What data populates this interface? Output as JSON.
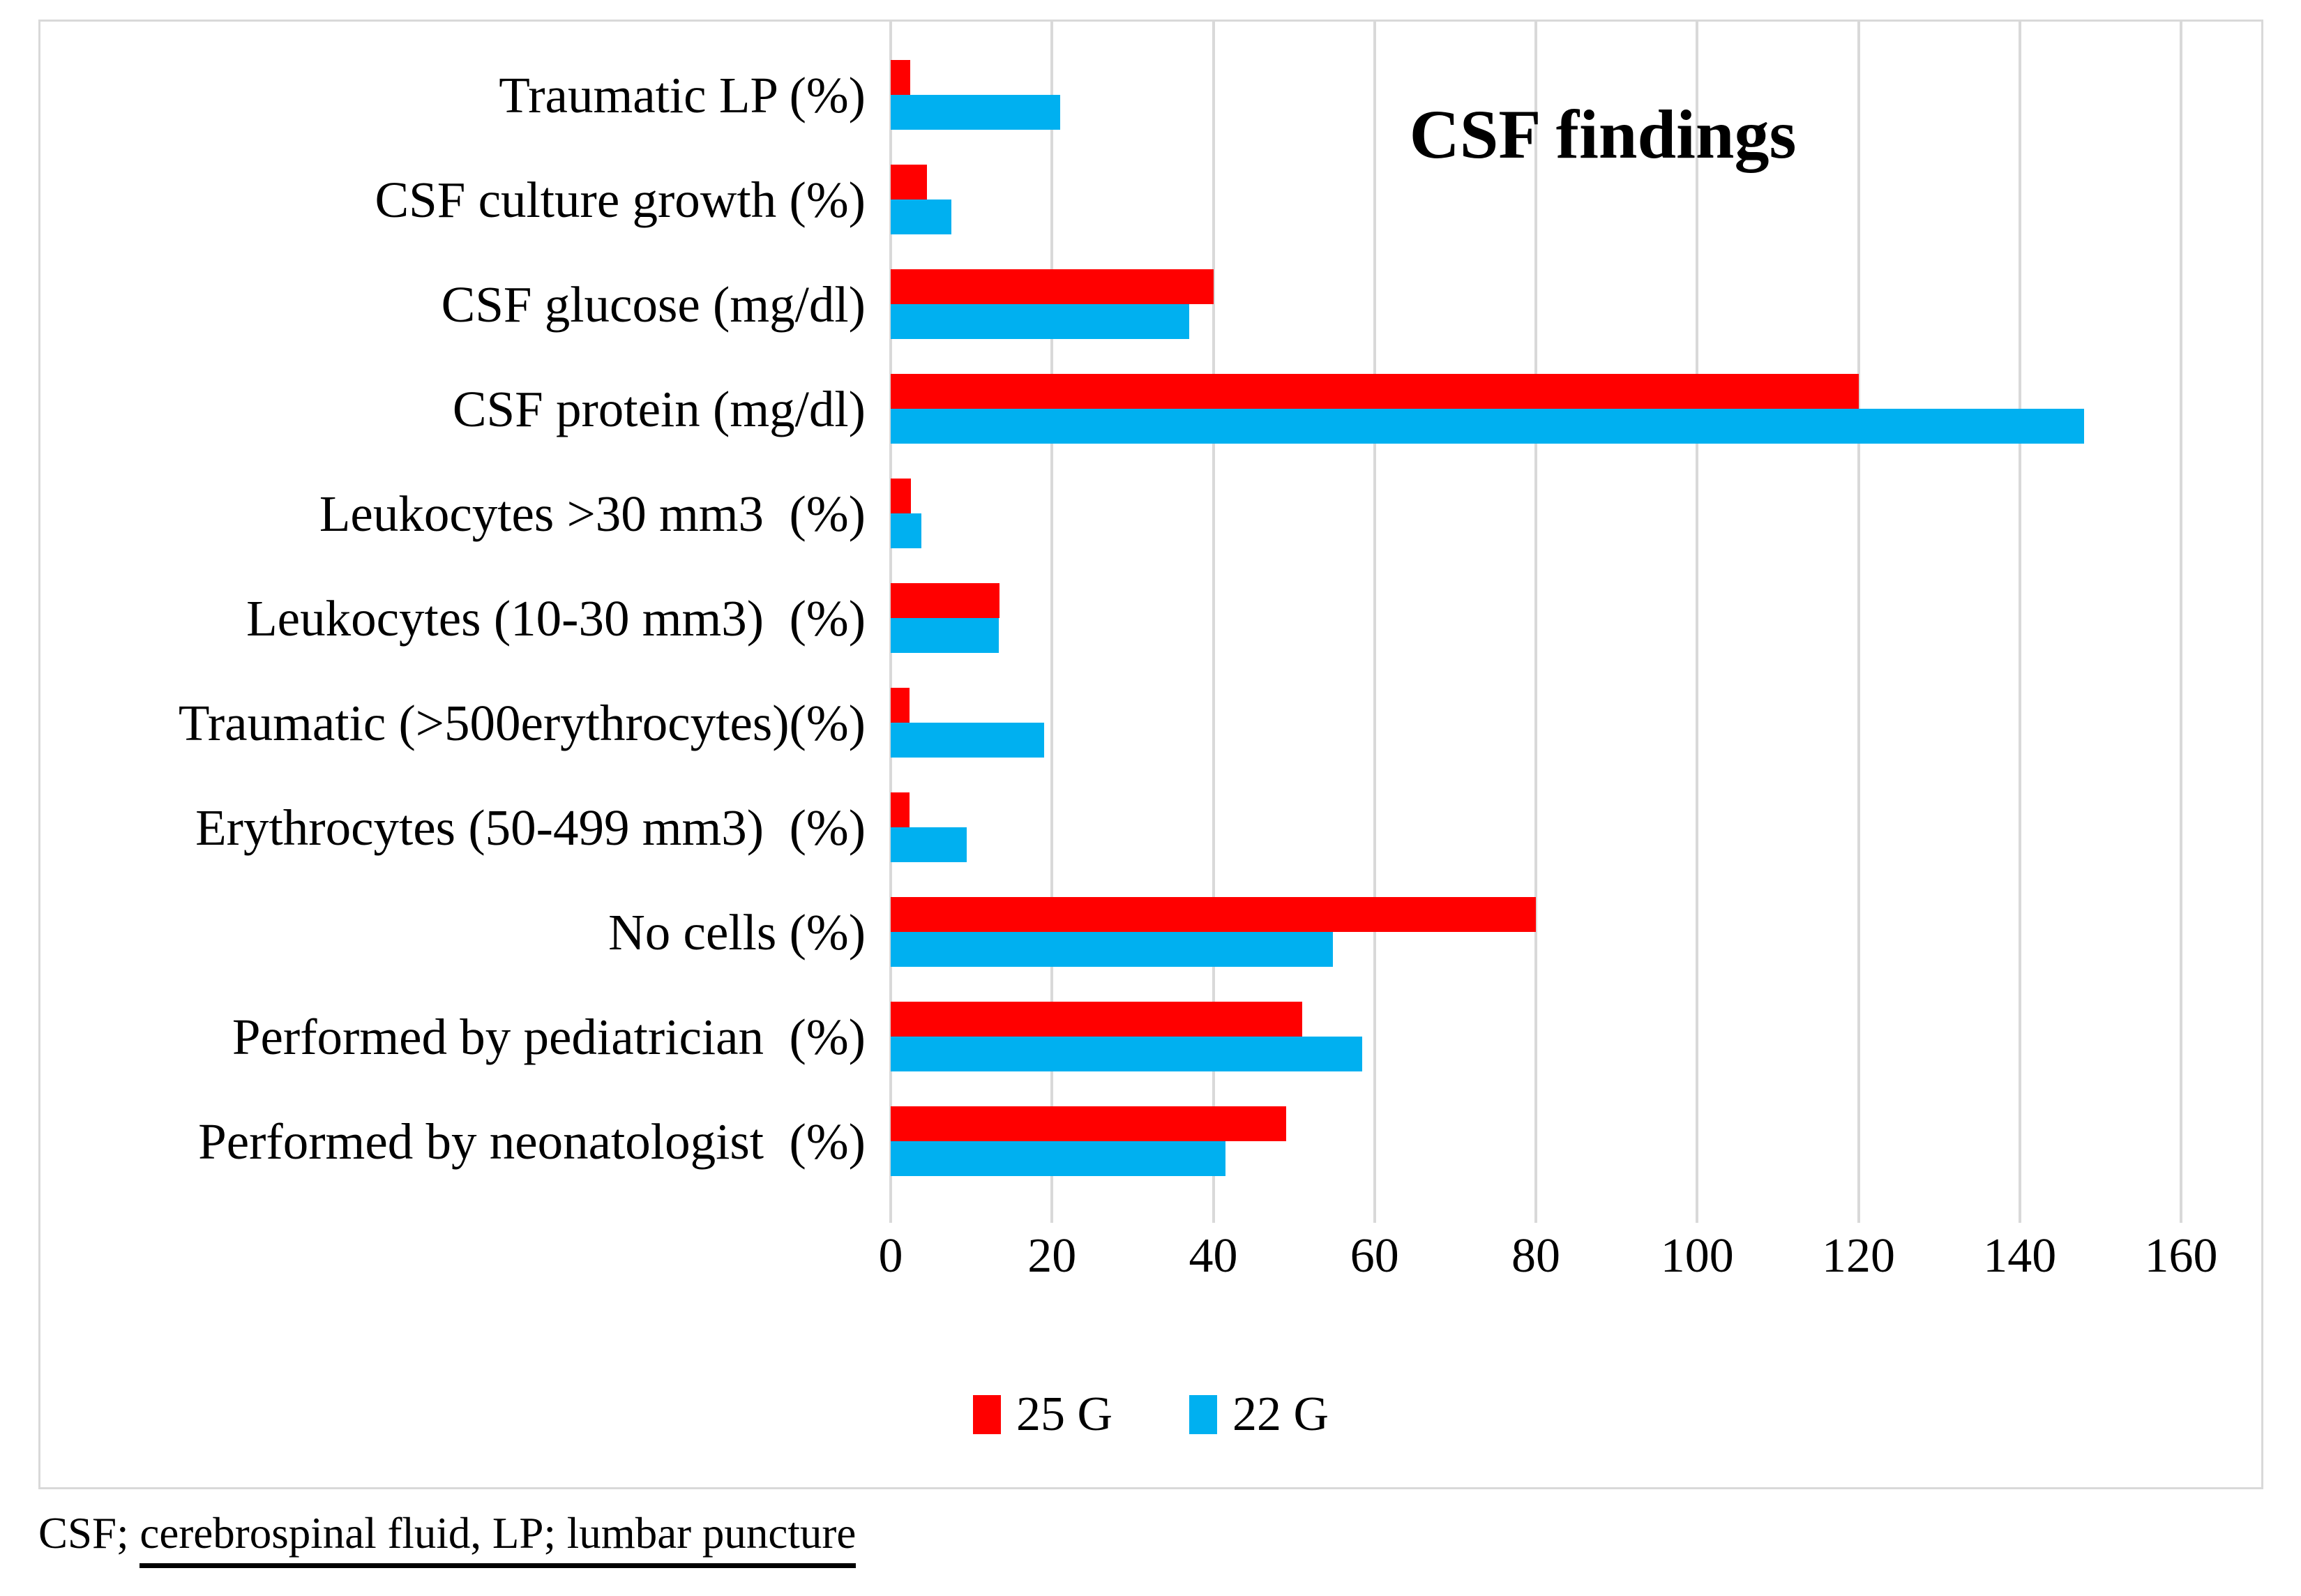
{
  "figure": {
    "footnote_prefix": "CSF; ",
    "footnote_underlined": "cerebrospinal fluid, LP; lumbar puncture"
  },
  "chart_data": {
    "type": "bar",
    "orientation": "horizontal",
    "title": "CSF findings",
    "categories": [
      "Traumatic LP (%)",
      "CSF culture growth (%)",
      "CSF glucose (mg/dl)",
      "CSF protein (mg/dl)",
      "Leukocytes >30 mm3  (%)",
      "Leukocytes (10-30 mm3)  (%)",
      "Traumatic (>500erythrocytes)(%)",
      "Erythrocytes (50-499 mm3)  (%)",
      "No cells (%)",
      "Performed by pediatrician  (%)",
      "Performed by neonatologist  (%)"
    ],
    "series": [
      {
        "name": "25 G",
        "color": "#ff0000",
        "values": [
          2.4,
          4.5,
          40,
          120,
          2.5,
          13.5,
          2.3,
          2.3,
          80,
          51,
          49
        ]
      },
      {
        "name": "22 G",
        "color": "#00b0f0",
        "values": [
          21,
          7.5,
          37,
          148,
          3.8,
          13.4,
          19,
          9.4,
          54.8,
          58.5,
          41.5
        ]
      }
    ],
    "xlim": [
      0,
      160
    ],
    "x_ticks": [
      0,
      20,
      40,
      60,
      80,
      100,
      120,
      140,
      160
    ],
    "grid": "vertical-gridlines",
    "legend_position": "bottom",
    "gridline_color": "#d9d9d9"
  }
}
